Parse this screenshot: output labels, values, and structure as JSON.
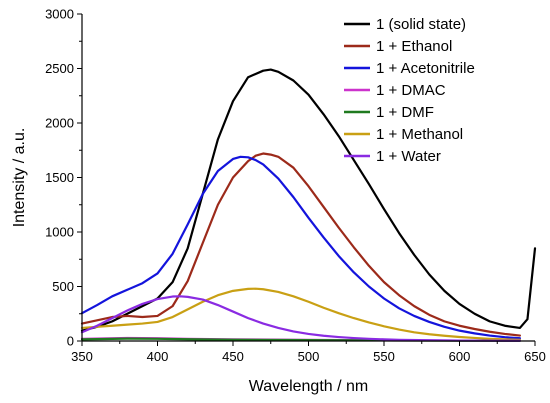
{
  "chart_data": {
    "type": "line",
    "xlabel": "Wavelength / nm",
    "ylabel": "Intensity / a.u.",
    "xlim": [
      350,
      650
    ],
    "ylim": [
      0,
      3000
    ],
    "xticks": [
      350,
      400,
      450,
      500,
      550,
      600,
      650
    ],
    "yticks": [
      0,
      500,
      1000,
      1500,
      2000,
      2500,
      3000
    ],
    "legend_position": "top-right",
    "grid": false,
    "series": [
      {
        "name": "1 (solid state)",
        "color": "#000000",
        "x": [
          350,
          360,
          370,
          380,
          390,
          400,
          410,
          420,
          430,
          440,
          450,
          460,
          470,
          475,
          480,
          490,
          500,
          510,
          520,
          530,
          540,
          550,
          560,
          570,
          580,
          590,
          600,
          610,
          620,
          630,
          640,
          645,
          650
        ],
        "y": [
          95,
          130,
          180,
          250,
          320,
          390,
          540,
          850,
          1350,
          1850,
          2200,
          2420,
          2480,
          2490,
          2470,
          2390,
          2260,
          2080,
          1880,
          1660,
          1440,
          1210,
          990,
          790,
          610,
          460,
          340,
          250,
          180,
          140,
          120,
          200,
          850
        ]
      },
      {
        "name": "1 + Ethanol",
        "color": "#9c2a1a",
        "x": [
          350,
          360,
          370,
          380,
          390,
          400,
          410,
          420,
          430,
          440,
          450,
          460,
          465,
          470,
          475,
          480,
          490,
          500,
          510,
          520,
          530,
          540,
          550,
          560,
          570,
          580,
          590,
          600,
          610,
          620,
          630,
          640
        ],
        "y": [
          160,
          190,
          220,
          230,
          220,
          230,
          320,
          550,
          900,
          1250,
          1500,
          1650,
          1700,
          1720,
          1710,
          1690,
          1590,
          1420,
          1230,
          1040,
          860,
          690,
          540,
          420,
          320,
          240,
          180,
          140,
          110,
          85,
          65,
          50
        ]
      },
      {
        "name": "1 + Acetonitrile",
        "color": "#1414dc",
        "x": [
          350,
          360,
          370,
          380,
          390,
          400,
          410,
          420,
          430,
          440,
          450,
          455,
          460,
          465,
          470,
          480,
          490,
          500,
          510,
          520,
          530,
          540,
          550,
          560,
          570,
          580,
          590,
          600,
          610,
          620,
          630,
          640
        ],
        "y": [
          255,
          330,
          410,
          470,
          530,
          620,
          800,
          1070,
          1350,
          1560,
          1670,
          1690,
          1685,
          1660,
          1620,
          1490,
          1320,
          1130,
          950,
          780,
          630,
          500,
          390,
          300,
          230,
          175,
          130,
          95,
          70,
          50,
          35,
          25
        ]
      },
      {
        "name": "1 + DMAC",
        "color": "#cc33cc",
        "x": [
          350,
          380,
          400,
          420,
          450,
          500,
          550,
          600,
          640
        ],
        "y": [
          20,
          28,
          25,
          20,
          15,
          10,
          6,
          4,
          3
        ]
      },
      {
        "name": "1 + DMF",
        "color": "#1f7a1f",
        "x": [
          350,
          380,
          400,
          420,
          450,
          500,
          550,
          600,
          640
        ],
        "y": [
          15,
          22,
          20,
          16,
          12,
          8,
          5,
          3,
          2
        ]
      },
      {
        "name": "1 + Methanol",
        "color": "#c9a014",
        "x": [
          350,
          360,
          370,
          380,
          390,
          400,
          410,
          420,
          430,
          440,
          450,
          460,
          465,
          470,
          480,
          490,
          500,
          510,
          520,
          530,
          540,
          550,
          560,
          570,
          580,
          590,
          600,
          610,
          620,
          630,
          640
        ],
        "y": [
          120,
          130,
          140,
          150,
          160,
          175,
          220,
          290,
          360,
          420,
          460,
          478,
          480,
          475,
          450,
          410,
          360,
          305,
          255,
          210,
          170,
          135,
          105,
          80,
          62,
          48,
          37,
          28,
          20,
          15,
          10
        ]
      },
      {
        "name": "1 + Water",
        "color": "#8a2be2",
        "x": [
          350,
          360,
          370,
          380,
          390,
          400,
          410,
          415,
          420,
          430,
          440,
          450,
          460,
          470,
          480,
          490,
          500,
          510,
          520,
          530,
          540,
          550,
          560,
          580,
          600,
          620,
          640
        ],
        "y": [
          80,
          140,
          210,
          280,
          340,
          385,
          408,
          410,
          405,
          380,
          330,
          270,
          210,
          160,
          120,
          88,
          65,
          48,
          36,
          27,
          20,
          15,
          11,
          7,
          4,
          3,
          2
        ]
      }
    ]
  }
}
